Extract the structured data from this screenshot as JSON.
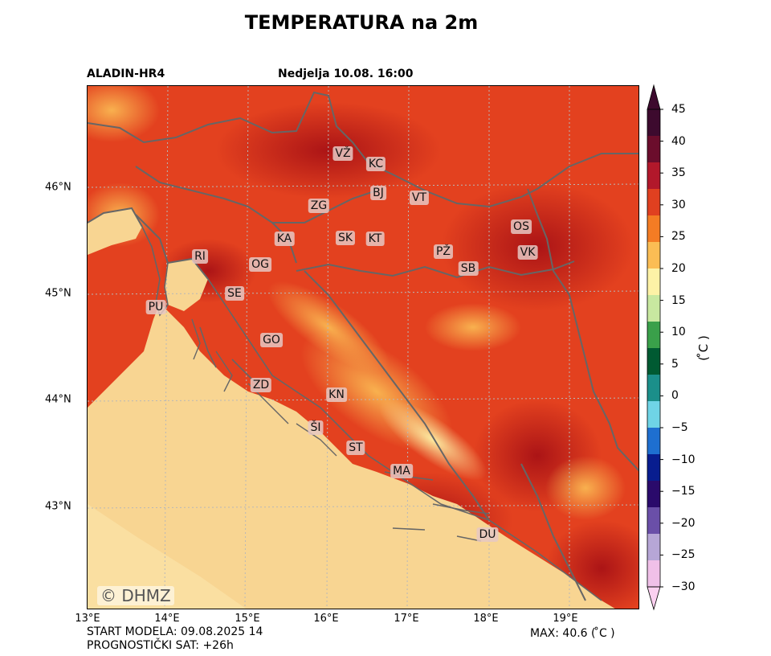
{
  "title": "TEMPERATURA na 2m",
  "model_name": "ALADIN-HR4",
  "forecast_date": "Nedjelja 10.08. 16:00",
  "watermark": "© DHMZ",
  "footer": {
    "start": "START MODELA: 09.08.2025 14",
    "hour": "PROGNOSTIČKI SAT: +26h",
    "max": "MAX: 40.6 ( ̊C )"
  },
  "axes": {
    "lon_ticks": [
      "13°E",
      "14°E",
      "15°E",
      "16°E",
      "17°E",
      "18°E",
      "19°E"
    ],
    "lat_ticks": [
      "46°N",
      "45°N",
      "44°N",
      "43°N"
    ]
  },
  "colorbar": {
    "unit": "( ̊C )",
    "ticks": [
      "45",
      "40",
      "35",
      "30",
      "25",
      "20",
      "15",
      "10",
      "5",
      "0",
      "−5",
      "−10",
      "−15",
      "−20",
      "−25",
      "−30"
    ],
    "colors": [
      "#3d0a2e",
      "#6b0d2c",
      "#b2182b",
      "#e04020",
      "#f47c24",
      "#fbbd54",
      "#fdf2a6",
      "#c8e8a0",
      "#3aa04a",
      "#005a32",
      "#1b8f8a",
      "#6fd4e6",
      "#1e6fd0",
      "#081d8f",
      "#2a0a6b",
      "#6a4fa8",
      "#b6a6d6",
      "#f0c0e8"
    ]
  },
  "cities": [
    {
      "code": "VŽ"
    },
    {
      "code": "KC"
    },
    {
      "code": "BJ"
    },
    {
      "code": "VT"
    },
    {
      "code": "ZG"
    },
    {
      "code": "OS"
    },
    {
      "code": "KA"
    },
    {
      "code": "SK"
    },
    {
      "code": "KT"
    },
    {
      "code": "PŽ"
    },
    {
      "code": "VK"
    },
    {
      "code": "RI"
    },
    {
      "code": "OG"
    },
    {
      "code": "SB"
    },
    {
      "code": "SE"
    },
    {
      "code": "PU"
    },
    {
      "code": "GO"
    },
    {
      "code": "ZD"
    },
    {
      "code": "KN"
    },
    {
      "code": "ŠI"
    },
    {
      "code": "ST"
    },
    {
      "code": "MA"
    },
    {
      "code": "DU"
    }
  ],
  "temperature_max_c": 40.6
}
